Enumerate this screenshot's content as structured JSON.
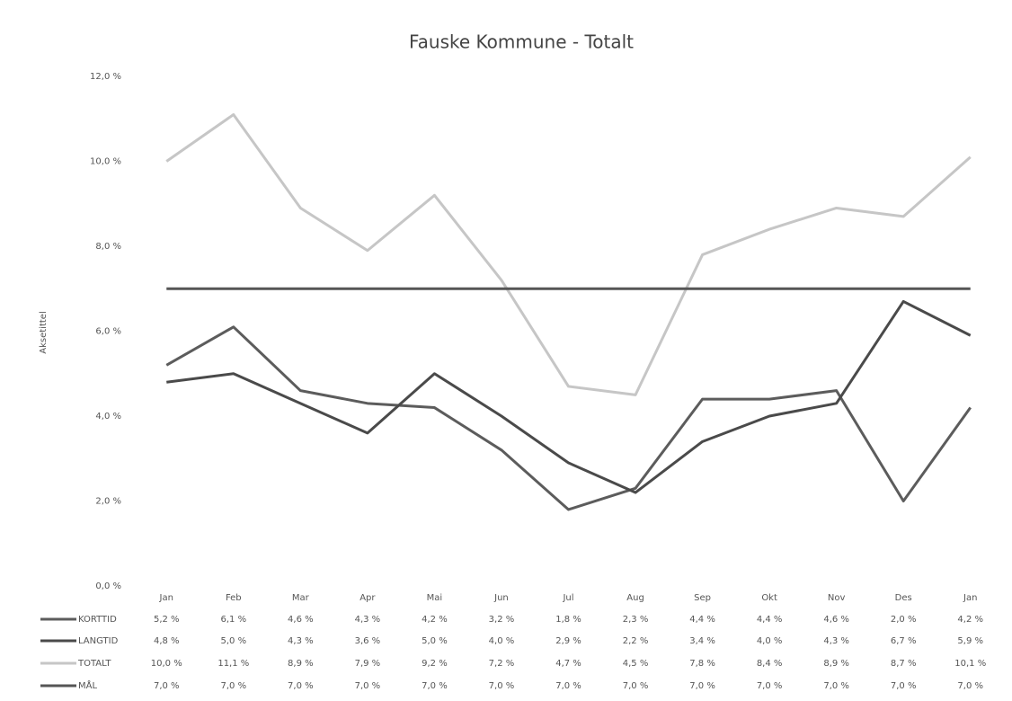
{
  "chart_data": {
    "type": "line",
    "title": "Fauske Kommune - Totalt",
    "y_label": "Aksetittel",
    "categories": [
      "Jan",
      "Feb",
      "Mar",
      "Apr",
      "Mai",
      "Jun",
      "Jul",
      "Aug",
      "Sep",
      "Okt",
      "Nov",
      "Des",
      "Jan"
    ],
    "ylim": [
      0,
      12
    ],
    "yticks": [
      {
        "value": 0,
        "label": "0,0 %"
      },
      {
        "value": 2,
        "label": "2,0 %"
      },
      {
        "value": 4,
        "label": "4,0 %"
      },
      {
        "value": 6,
        "label": "6,0 %"
      },
      {
        "value": 8,
        "label": "8,0 %"
      },
      {
        "value": 10,
        "label": "10,0 %"
      },
      {
        "value": 12,
        "label": "12,0 %"
      }
    ],
    "grid": false,
    "series": [
      {
        "name": "KORTTID",
        "color": "#5c5c5c",
        "values": [
          5.2,
          6.1,
          4.6,
          4.3,
          4.2,
          3.2,
          1.8,
          2.3,
          4.4,
          4.4,
          4.6,
          2.0,
          4.2
        ],
        "value_labels": [
          "5,2 %",
          "6,1 %",
          "4,6 %",
          "4,3 %",
          "4,2 %",
          "3,2 %",
          "1,8 %",
          "2,3 %",
          "4,4 %",
          "4,4 %",
          "4,6 %",
          "2,0 %",
          "4,2 %"
        ]
      },
      {
        "name": "LANGTID",
        "color": "#4a4a4a",
        "values": [
          4.8,
          5.0,
          4.3,
          3.6,
          5.0,
          4.0,
          2.9,
          2.2,
          3.4,
          4.0,
          4.3,
          6.7,
          5.9
        ],
        "value_labels": [
          "4,8 %",
          "5,0 %",
          "4,3 %",
          "3,6 %",
          "5,0 %",
          "4,0 %",
          "2,9 %",
          "2,2 %",
          "3,4 %",
          "4,0 %",
          "4,3 %",
          "6,7 %",
          "5,9 %"
        ]
      },
      {
        "name": "TOTALT",
        "color": "#c6c6c6",
        "values": [
          10.0,
          11.1,
          8.9,
          7.9,
          9.2,
          7.2,
          4.7,
          4.5,
          7.8,
          8.4,
          8.9,
          8.7,
          10.1
        ],
        "value_labels": [
          "10,0 %",
          "11,1 %",
          "8,9 %",
          "7,9 %",
          "9,2 %",
          "7,2 %",
          "4,7 %",
          "4,5 %",
          "7,8 %",
          "8,4 %",
          "8,9 %",
          "8,7 %",
          "10,1 %"
        ]
      },
      {
        "name": "MÅL",
        "color": "#555555",
        "values": [
          7.0,
          7.0,
          7.0,
          7.0,
          7.0,
          7.0,
          7.0,
          7.0,
          7.0,
          7.0,
          7.0,
          7.0,
          7.0
        ],
        "value_labels": [
          "7,0 %",
          "7,0 %",
          "7,0 %",
          "7,0 %",
          "7,0 %",
          "7,0 %",
          "7,0 %",
          "7,0 %",
          "7,0 %",
          "7,0 %",
          "7,0 %",
          "7,0 %",
          "7,0 %"
        ]
      }
    ]
  }
}
